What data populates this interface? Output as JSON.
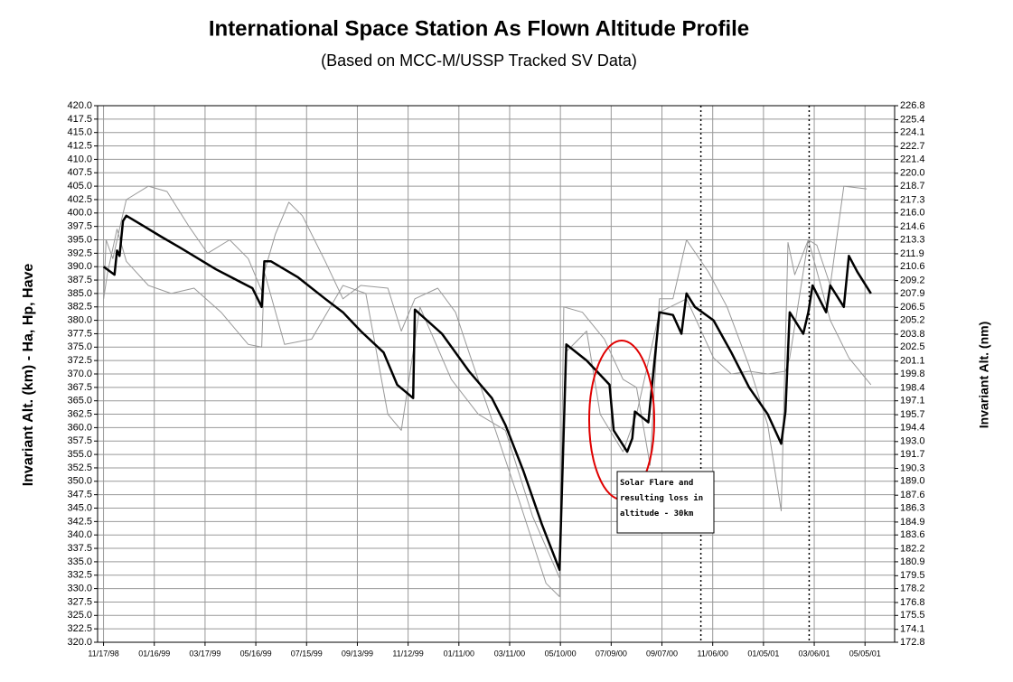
{
  "chart_data": {
    "type": "line",
    "title": "International Space Station As Flown Altitude Profile",
    "subtitle": "(Based on MCC-M/USSP Tracked SV Data)",
    "y_label": "Invariant Alt. (km) - Ha, Hp, Have",
    "y2_label": "Invariant Alt. (nm)",
    "annotation": "Solar Flare and resulting loss in altitude - 30km",
    "grid": true,
    "xlim": [
      -7,
      935
    ],
    "xticks": [
      {
        "value": 0,
        "label": "11/17/98"
      },
      {
        "value": 60,
        "label": "01/16/99"
      },
      {
        "value": 120,
        "label": "03/17/99"
      },
      {
        "value": 180,
        "label": "05/16/99"
      },
      {
        "value": 240,
        "label": "07/15/99"
      },
      {
        "value": 300,
        "label": "09/13/99"
      },
      {
        "value": 360,
        "label": "11/12/99"
      },
      {
        "value": 420,
        "label": "01/11/00"
      },
      {
        "value": 480,
        "label": "03/11/00"
      },
      {
        "value": 540,
        "label": "05/10/00"
      },
      {
        "value": 600,
        "label": "07/09/00"
      },
      {
        "value": 660,
        "label": "09/07/00"
      },
      {
        "value": 720,
        "label": "11/06/00"
      },
      {
        "value": 780,
        "label": "01/05/01"
      },
      {
        "value": 840,
        "label": "03/06/01"
      },
      {
        "value": 900,
        "label": "05/05/01"
      }
    ],
    "reference_lines": [
      706,
      834
    ],
    "ylim": [
      320,
      420
    ],
    "yticks": [
      {
        "value": 320,
        "label": "320.0"
      },
      322.5,
      {
        "value": 325,
        "label": "325.0"
      },
      327.5,
      {
        "value": 330,
        "label": "330.0"
      },
      332.5,
      {
        "value": 335,
        "label": "335.0"
      },
      337.5,
      {
        "value": 340,
        "label": "340.0"
      },
      342.5,
      {
        "value": 345,
        "label": "345.0"
      },
      347.5,
      {
        "value": 350,
        "label": "350.0"
      },
      352.5,
      {
        "value": 355,
        "label": "355.0"
      },
      357.5,
      {
        "value": 360,
        "label": "360.0"
      },
      362.5,
      {
        "value": 365,
        "label": "365.0"
      },
      367.5,
      {
        "value": 370,
        "label": "370.0"
      },
      372.5,
      {
        "value": 375,
        "label": "375.0"
      },
      377.5,
      {
        "value": 380,
        "label": "380.0"
      },
      382.5,
      {
        "value": 385,
        "label": "385.0"
      },
      387.5,
      {
        "value": 390,
        "label": "390.0"
      },
      392.5,
      {
        "value": 395,
        "label": "395.0"
      },
      397.5,
      {
        "value": 400,
        "label": "400.0"
      },
      402.5,
      {
        "value": 405,
        "label": "405.0"
      },
      407.5,
      {
        "value": 410,
        "label": "410.0"
      },
      412.5,
      {
        "value": 415,
        "label": "415.0"
      },
      417.5,
      {
        "value": 420,
        "label": "420.0"
      }
    ],
    "y2lim": [
      172.8,
      226.8
    ],
    "y2ticks": [
      172.8,
      174.1,
      175.5,
      176.8,
      178.2,
      179.5,
      180.9,
      182.2,
      183.6,
      184.9,
      186.3,
      187.6,
      {
        "value": 189,
        "label": "189.0"
      },
      190.3,
      191.7,
      {
        "value": 193,
        "label": "193.0"
      },
      194.4,
      195.7,
      197.1,
      198.4,
      199.8,
      201.1,
      202.5,
      203.8,
      205.2,
      206.5,
      207.9,
      209.2,
      210.6,
      211.9,
      213.3,
      214.6,
      {
        "value": 216,
        "label": "216.0"
      },
      217.3,
      218.7,
      {
        "value": 220,
        "label": "220.0"
      },
      221.4,
      222.7,
      224.1,
      225.4,
      226.8
    ],
    "series": [
      {
        "color": "#999999",
        "width": 1,
        "x": [
          0,
          3,
          11,
          21,
          27,
          53,
          75,
          101,
          123,
          149,
          171,
          187,
          190,
          203,
          219,
          235,
          262,
          283,
          304,
          336,
          352,
          368,
          395,
          416,
          432,
          459,
          491,
          523,
          539,
          544,
          566,
          592,
          614,
          630,
          646,
          657,
          673,
          689,
          715,
          737,
          763,
          785,
          801,
          809,
          817,
          833,
          843,
          859,
          875,
          902
        ],
        "values": [
          384,
          395,
          391.5,
          398.5,
          402.5,
          405,
          404,
          397.5,
          392.5,
          395,
          391.5,
          385.5,
          389,
          396,
          402,
          399.5,
          391,
          384,
          386.5,
          386,
          378,
          384,
          386,
          381.5,
          374,
          361.5,
          346.5,
          331,
          328.5,
          382.5,
          381.5,
          376.5,
          369,
          367.5,
          353,
          384,
          384,
          395,
          389,
          382.5,
          371.5,
          360.5,
          344.5,
          394.5,
          388.5,
          395,
          394,
          386.5,
          405,
          404.5
        ]
      },
      {
        "color": "#999999",
        "width": 1,
        "x": [
          0,
          5,
          16,
          27,
          53,
          80,
          107,
          139,
          171,
          187,
          190,
          214,
          246,
          283,
          310,
          336,
          352,
          374,
          411,
          443,
          475,
          507,
          539,
          546,
          571,
          587,
          614,
          630,
          657,
          689,
          721,
          742,
          763,
          785,
          806,
          811,
          833,
          859,
          881,
          907
        ],
        "values": [
          384,
          389,
          397,
          391,
          386.5,
          385,
          386,
          381.5,
          375.5,
          375,
          389,
          375.5,
          376.5,
          386.5,
          385,
          362.5,
          359.5,
          382.5,
          369,
          362.5,
          359.5,
          343.5,
          332,
          374,
          378,
          362.5,
          355.5,
          362.5,
          381.5,
          384,
          373,
          370,
          370.5,
          370,
          370.5,
          373,
          395,
          380,
          373,
          368
        ]
      },
      {
        "color": "#000000",
        "width": 2.5,
        "x": [
          0,
          13,
          16,
          19,
          23,
          27,
          48,
          69,
          91,
          133,
          176,
          187,
          190,
          198,
          230,
          262,
          283,
          304,
          331,
          347,
          366,
          368,
          400,
          432,
          459,
          475,
          496,
          518,
          539,
          547,
          571,
          598,
          603,
          619,
          625,
          628,
          644,
          657,
          673,
          683,
          689,
          699,
          721,
          742,
          763,
          785,
          801,
          806,
          811,
          827,
          833,
          838,
          854,
          859,
          875,
          881,
          891,
          907
        ],
        "values": [
          390,
          388.5,
          393,
          392,
          398.5,
          399.5,
          397.5,
          395.5,
          393.5,
          389.5,
          386,
          382.5,
          391,
          391,
          388,
          384,
          381.5,
          378,
          374,
          368,
          365.5,
          382,
          377.5,
          370.5,
          365.5,
          360.5,
          352,
          342,
          333.5,
          375.5,
          372.5,
          368,
          359.5,
          355.5,
          358,
          363,
          361,
          381.5,
          381,
          377.5,
          385,
          382.5,
          380,
          374,
          367.5,
          362.5,
          357,
          363,
          381.5,
          377.5,
          381.5,
          386.5,
          381.5,
          386.5,
          382.5,
          392,
          389,
          385
        ]
      }
    ]
  }
}
